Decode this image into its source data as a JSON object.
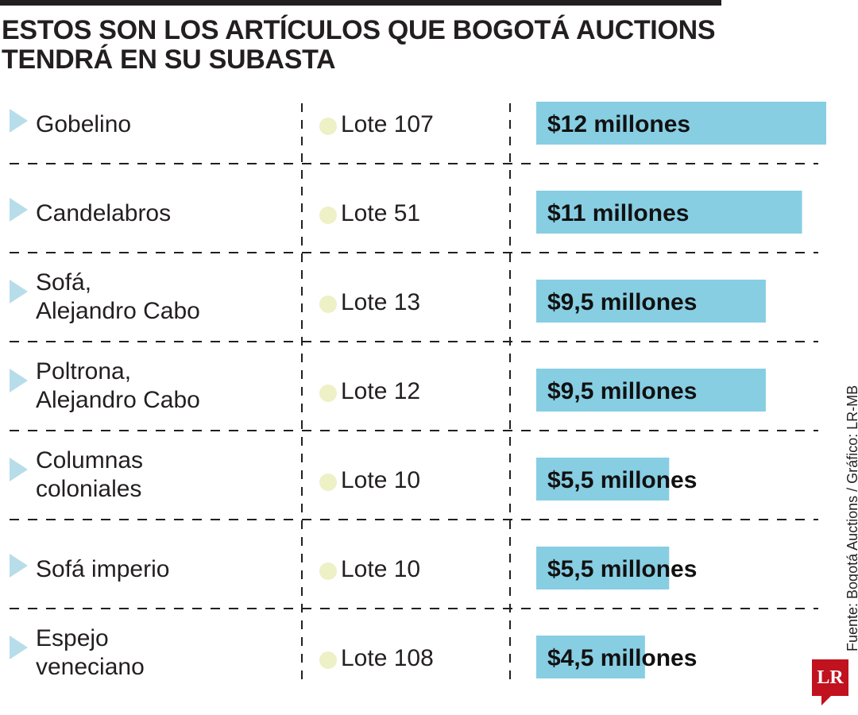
{
  "title": {
    "line1": "ESTOS SON LOS ARTÍCULOS QUE BOGOTÁ AUCTIONS",
    "line2": "TENDRÁ EN SU SUBASTA"
  },
  "source": "Fuente: Bogotá Auctions / Gráfico: LR-MB",
  "logo": "LR",
  "colors": {
    "bar": "#87CEE3",
    "marker": "#B7DDEA",
    "dot": "#EEF0C6",
    "text": "#231F20",
    "rule": "#231F20",
    "logo": "#C1121F"
  },
  "chart_data": {
    "type": "bar",
    "orientation": "horizontal",
    "title": "ESTOS SON LOS ARTÍCULOS QUE BOGOTÁ AUCTIONS TENDRÁ EN SU SUBASTA",
    "unit": "millones de pesos",
    "xlim": [
      0,
      12
    ],
    "categories": [
      [
        "Gobelino"
      ],
      [
        "Candelabros"
      ],
      [
        "Sofá,",
        "Alejandro Cabo"
      ],
      [
        "Poltrona,",
        "Alejandro Cabo"
      ],
      [
        "Columnas",
        "coloniales"
      ],
      [
        "Sofá imperio"
      ],
      [
        "Espejo",
        "veneciano"
      ]
    ],
    "lots": [
      "Lote 107",
      "Lote 51",
      "Lote 13",
      "Lote 12",
      "Lote 10",
      "Lote 10",
      "Lote 108"
    ],
    "values": [
      12,
      11,
      9.5,
      9.5,
      5.5,
      5.5,
      4.5
    ],
    "labels": [
      "$12 millones",
      "$11 millones",
      "$9,5 millones",
      "$9,5 millones",
      "$5,5 millones",
      "$5,5 millones",
      "$4,5 millones"
    ]
  }
}
